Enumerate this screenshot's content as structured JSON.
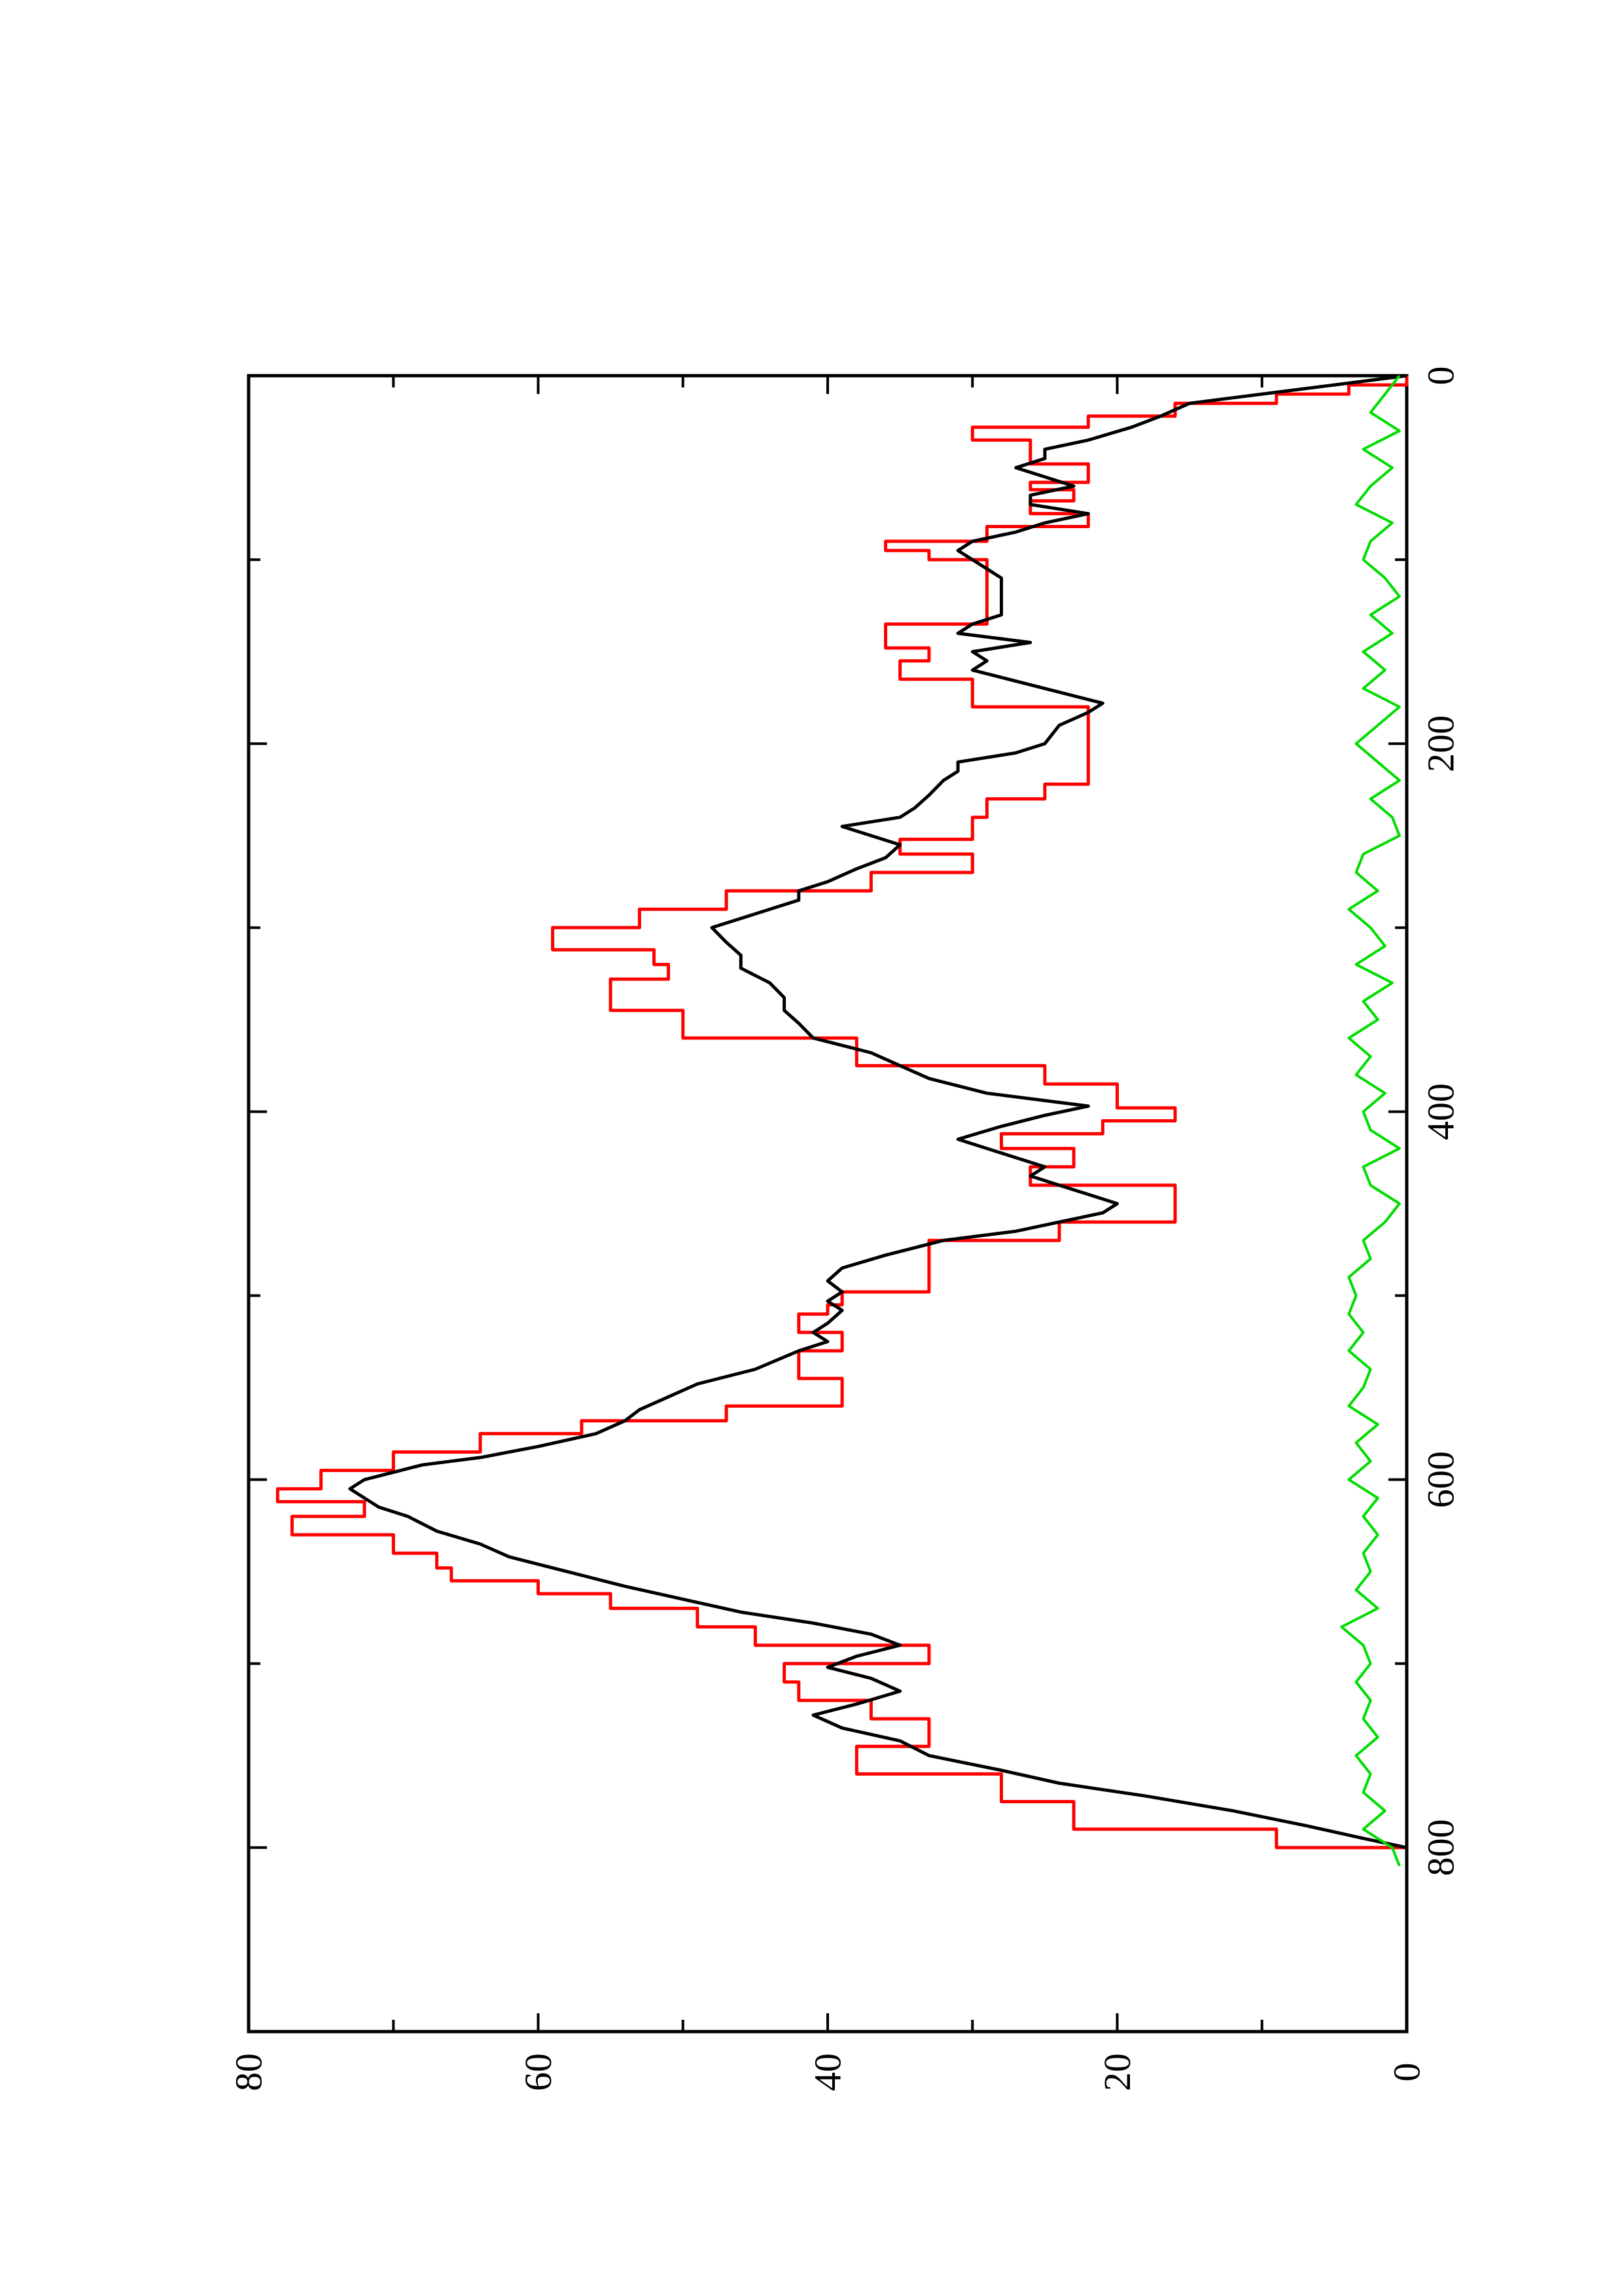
{
  "chart_data": {
    "type": "line",
    "title": "",
    "xlabel": "",
    "ylabel": "",
    "xlim": [
      0,
      900
    ],
    "ylim": [
      0,
      80
    ],
    "x_ticks": [
      0,
      200,
      400,
      600,
      800
    ],
    "x_tick_labels": [
      "0",
      "200",
      "400",
      "600",
      "800"
    ],
    "x_minor_ticks": [
      100,
      300,
      500,
      700
    ],
    "y_ticks": [
      0,
      20,
      40,
      60,
      80
    ],
    "y_tick_labels": [
      "0",
      "20",
      "40",
      "60",
      "80"
    ],
    "y_minor_ticks": [
      10,
      30,
      50,
      70
    ],
    "grid": false,
    "legend": "none",
    "orientation": "rotated 90 degrees counter-clockwise on the page",
    "series": [
      {
        "color": "#ff0000",
        "style": "step",
        "x": [
          0,
          5,
          10,
          15,
          22,
          28,
          35,
          48,
          58,
          62,
          68,
          75,
          82,
          90,
          95,
          100,
          110,
          125,
          135,
          148,
          155,
          165,
          180,
          200,
          210,
          222,
          230,
          240,
          245,
          252,
          260,
          270,
          280,
          290,
          300,
          312,
          320,
          328,
          335,
          345,
          360,
          375,
          385,
          398,
          405,
          412,
          420,
          430,
          440,
          452,
          460,
          470,
          480,
          490,
          498,
          505,
          510,
          520,
          530,
          545,
          560,
          568,
          575,
          585,
          595,
          605,
          612,
          620,
          630,
          640,
          648,
          655,
          662,
          670,
          680,
          690,
          700,
          710,
          720,
          730,
          745,
          760,
          775,
          790,
          800
        ],
        "y": [
          0,
          4,
          9,
          16,
          22,
          30,
          26,
          22,
          26,
          23,
          26,
          22,
          29,
          36,
          33,
          29,
          29,
          29,
          36,
          33,
          35,
          30,
          22,
          22,
          22,
          25,
          29,
          30,
          30,
          35,
          30,
          37,
          47,
          53,
          59,
          52,
          51,
          55,
          55,
          50,
          38,
          25,
          20,
          16,
          21,
          28,
          23,
          26,
          16,
          16,
          24,
          33,
          33,
          33,
          39,
          40,
          42,
          39,
          42,
          39,
          47,
          57,
          64,
          70,
          75,
          78,
          72,
          77,
          70,
          67,
          66,
          60,
          55,
          49,
          45,
          33,
          43,
          42,
          37,
          33,
          38,
          28,
          23,
          9,
          0
        ]
      },
      {
        "color": "#000000",
        "style": "line",
        "x": [
          0,
          5,
          10,
          15,
          22,
          28,
          35,
          40,
          45,
          50,
          55,
          60,
          65,
          70,
          75,
          80,
          85,
          90,
          95,
          100,
          110,
          120,
          130,
          135,
          140,
          145,
          150,
          155,
          160,
          170,
          178,
          183,
          190,
          200,
          205,
          210,
          215,
          220,
          228,
          235,
          240,
          245,
          250,
          255,
          262,
          268,
          275,
          280,
          285,
          290,
          295,
          300,
          308,
          315,
          322,
          330,
          338,
          345,
          352,
          360,
          368,
          375,
          382,
          390,
          397,
          402,
          408,
          415,
          420,
          425,
          430,
          435,
          440,
          445,
          450,
          455,
          460,
          465,
          470,
          478,
          485,
          492,
          498,
          503,
          508,
          515,
          520,
          525,
          530,
          540,
          548,
          555,
          562,
          568,
          575,
          582,
          588,
          592,
          596,
          600,
          605,
          610,
          615,
          620,
          628,
          635,
          642,
          650,
          658,
          665,
          672,
          678,
          684,
          690,
          696,
          702,
          708,
          715,
          722,
          728,
          735,
          742,
          750,
          758,
          765,
          772,
          780,
          788,
          795,
          800
        ],
        "y": [
          0,
          5,
          10,
          15,
          17,
          19,
          22,
          25,
          25,
          27,
          25,
          23,
          26,
          26,
          22,
          25,
          27,
          30,
          31,
          30,
          28,
          28,
          28,
          30,
          31,
          26,
          30,
          29,
          30,
          25,
          21,
          22,
          24,
          25,
          27,
          31,
          31,
          32,
          33,
          34,
          35,
          39,
          37,
          35,
          36,
          38,
          40,
          42,
          42,
          44,
          46,
          48,
          47,
          46,
          46,
          44,
          43,
          43,
          42,
          41,
          37,
          35,
          33,
          29,
          22,
          25,
          28,
          31,
          29,
          27,
          25,
          26,
          24,
          22,
          20,
          21,
          24,
          27,
          32,
          36,
          39,
          40,
          39,
          40,
          39,
          40,
          41,
          40,
          42,
          45,
          49,
          51,
          53,
          54,
          56,
          60,
          64,
          68,
          70,
          72,
          73,
          72,
          71,
          69,
          67,
          64,
          62,
          58,
          54,
          50,
          46,
          41,
          37,
          35,
          38,
          40,
          37,
          35,
          38,
          41,
          39,
          35,
          33,
          28,
          24,
          18,
          12,
          7,
          3,
          0
        ]
      },
      {
        "color": "#00dd00",
        "style": "noise",
        "x": [
          0,
          10,
          20,
          30,
          40,
          50,
          60,
          70,
          80,
          90,
          100,
          110,
          120,
          130,
          140,
          150,
          160,
          170,
          180,
          190,
          200,
          210,
          220,
          230,
          240,
          250,
          260,
          270,
          280,
          290,
          300,
          310,
          320,
          330,
          340,
          350,
          360,
          370,
          380,
          390,
          400,
          410,
          420,
          430,
          440,
          450,
          460,
          470,
          480,
          490,
          500,
          510,
          520,
          530,
          540,
          550,
          560,
          570,
          580,
          590,
          600,
          610,
          620,
          630,
          640,
          650,
          660,
          670,
          680,
          690,
          700,
          710,
          720,
          730,
          740,
          750,
          760,
          770,
          780,
          790,
          800,
          810
        ],
        "y": [
          0.5,
          1.5,
          2.5,
          0.5,
          3,
          1,
          2.5,
          3.5,
          1,
          2.5,
          3,
          1.5,
          0.5,
          2.5,
          1,
          3,
          1.5,
          3,
          0.5,
          2,
          3.5,
          2,
          0.5,
          2.5,
          1,
          0.5,
          3,
          3.5,
          2,
          4,
          2.5,
          1.5,
          3.5,
          1,
          3,
          2,
          4,
          2.5,
          3.5,
          1.5,
          3,
          2.5,
          0.5,
          3,
          2.5,
          0.5,
          1.5,
          3,
          2.5,
          4,
          3.5,
          4,
          3,
          4,
          2.5,
          3,
          4,
          2,
          3.5,
          2.5,
          4,
          2,
          3,
          2,
          3,
          2.5,
          3.5,
          2,
          4.5,
          3,
          2.5,
          3.5,
          2.5,
          3,
          2,
          3.5,
          2.5,
          3,
          1.5,
          3,
          1,
          0.5
        ]
      }
    ]
  }
}
